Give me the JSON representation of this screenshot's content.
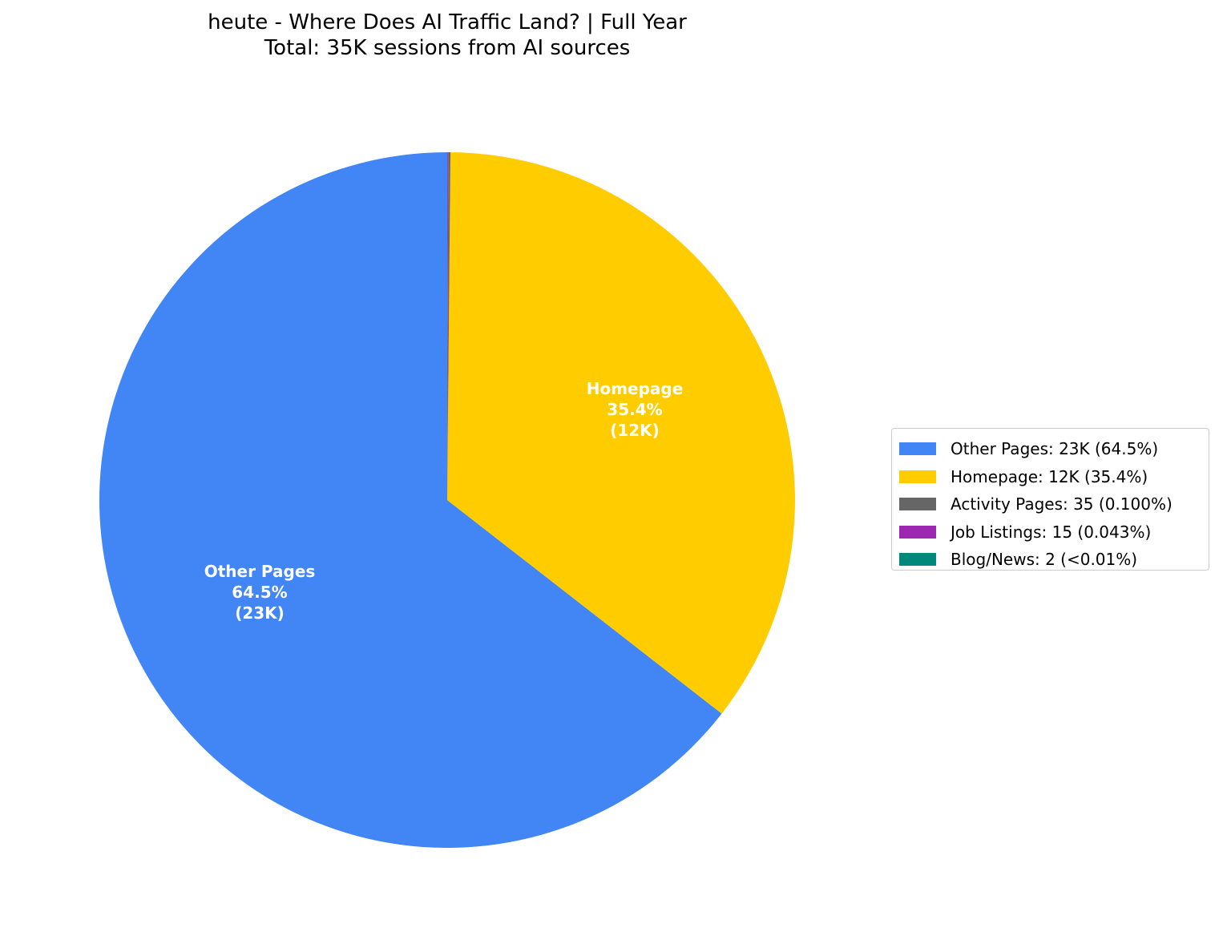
{
  "title": {
    "line1": "heute - Where Does AI Traffic Land? | Full Year",
    "line2": "Total: 35K sessions from AI sources"
  },
  "slices": [
    {
      "name": "Other Pages",
      "percent": "64.5%",
      "value_label": "(23K)",
      "color": "#4285F4"
    },
    {
      "name": "Homepage",
      "percent": "35.4%",
      "value_label": "(12K)",
      "color": "#FFCC00"
    }
  ],
  "legend": {
    "items": [
      {
        "label": "Other Pages: 23K (64.5%)",
        "color": "#4285F4"
      },
      {
        "label": "Homepage: 12K (35.4%)",
        "color": "#FFCC00"
      },
      {
        "label": "Activity Pages: 35 (0.100%)",
        "color": "#666666"
      },
      {
        "label": "Job Listings: 15 (0.043%)",
        "color": "#9C27B0"
      },
      {
        "label": "Blog/News: 2 (<0.01%)",
        "color": "#00897B"
      }
    ]
  },
  "chart_data": {
    "type": "pie",
    "title": "heute - Where Does AI Traffic Land? | Full Year\nTotal: 35K sessions from AI sources",
    "categories": [
      "Other Pages",
      "Homepage",
      "Activity Pages",
      "Job Listings",
      "Blog/News"
    ],
    "values": [
      22600,
      12400,
      35,
      15,
      2
    ],
    "display_values": [
      "23K",
      "12K",
      "35",
      "15",
      "2"
    ],
    "percentages": [
      64.5,
      35.4,
      0.1,
      0.043,
      0.01
    ],
    "percent_labels": [
      "64.5%",
      "35.4%",
      "0.100%",
      "0.043%",
      "<0.01%"
    ],
    "colors": [
      "#4285F4",
      "#FFCC00",
      "#666666",
      "#9C27B0",
      "#00897B"
    ],
    "start_angle": 90,
    "legend_position": "right",
    "total_label": "35K sessions"
  }
}
